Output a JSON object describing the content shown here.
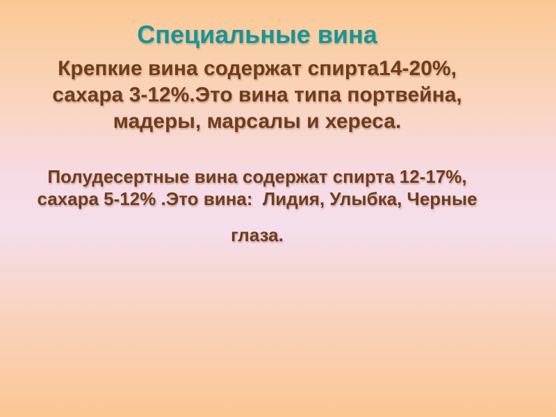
{
  "slide": {
    "title": "Специальные вина",
    "paragraph1": {
      "lines": [
        "Крепкие вина содержат спирта14-20%,",
        "сахара 3-12%.Это вина типа портвейна,",
        "мадеры, марсалы и хереса."
      ]
    },
    "paragraph2": {
      "lines": [
        "Полудесертные вина содержат спирта 12-17%,",
        "сахара 5-12% .Это вина:  Лидия, Улыбка, Черные"
      ],
      "last_line": "глаза."
    },
    "colors": {
      "title_text": "#1a9494",
      "body_text": "#6f3c1e",
      "background_top": "#fbc995",
      "background_middle": "#f4deec",
      "background_bottom": "#fcc793"
    }
  }
}
